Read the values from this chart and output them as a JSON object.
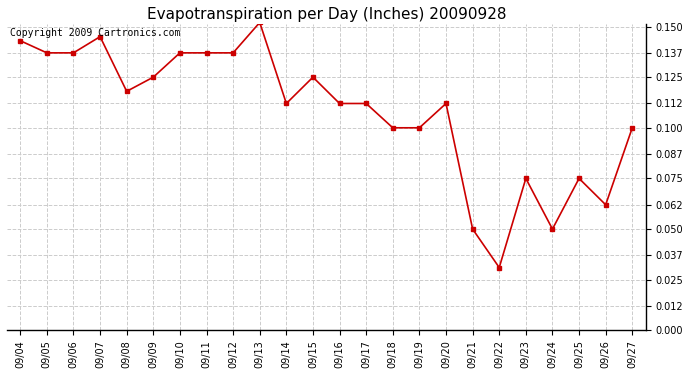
{
  "title": "Evapotranspiration per Day (Inches) 20090928",
  "copyright_text": "Copyright 2009 Cartronics.com",
  "dates": [
    "09/04",
    "09/05",
    "09/06",
    "09/07",
    "09/08",
    "09/09",
    "09/10",
    "09/11",
    "09/12",
    "09/13",
    "09/14",
    "09/15",
    "09/16",
    "09/17",
    "09/18",
    "09/19",
    "09/20",
    "09/21",
    "09/22",
    "09/23",
    "09/24",
    "09/25",
    "09/26",
    "09/27"
  ],
  "values": [
    0.143,
    0.137,
    0.137,
    0.145,
    0.118,
    0.125,
    0.137,
    0.137,
    0.137,
    0.152,
    0.112,
    0.125,
    0.112,
    0.112,
    0.1,
    0.1,
    0.112,
    0.05,
    0.031,
    0.075,
    0.05,
    0.075,
    0.062,
    0.1
  ],
  "line_color": "#cc0000",
  "marker": "s",
  "marker_size": 3,
  "background_color": "#ffffff",
  "grid_color": "#cccccc",
  "ylim_min": 0.0,
  "ylim_max": 0.15,
  "yticks": [
    0.0,
    0.012,
    0.025,
    0.037,
    0.05,
    0.062,
    0.075,
    0.087,
    0.1,
    0.112,
    0.125,
    0.137,
    0.15
  ],
  "title_fontsize": 11,
  "tick_fontsize": 7,
  "copyright_fontsize": 7,
  "figwidth": 6.9,
  "figheight": 3.75,
  "dpi": 100
}
